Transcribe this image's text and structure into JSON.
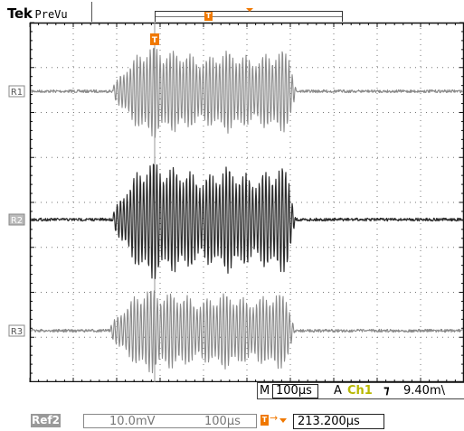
{
  "header": {
    "brand": "Tek",
    "mode": "PreVu"
  },
  "markers": {
    "trigger_glyph": "T",
    "channels": [
      {
        "label": "R1"
      },
      {
        "label": "R2"
      },
      {
        "label": "R3"
      }
    ]
  },
  "status": {
    "time_prefix": "M",
    "timebase": "100µs",
    "acq_prefix": "A",
    "trigger_source": "Ch1",
    "trigger_slope": "⁊",
    "trigger_level": "9.40m\\"
  },
  "reference": {
    "label": "Ref2",
    "volts_per_div": "10.0mV",
    "time_per_div": "100µs",
    "position": "213.200µs"
  },
  "colors": {
    "trace_dark": "#2a2a2a",
    "trace_light": "#8a8a8a",
    "graticule": "#111111",
    "dots": "#777777",
    "accent": "#f07800",
    "trigger_channel": "#b8b800"
  }
}
